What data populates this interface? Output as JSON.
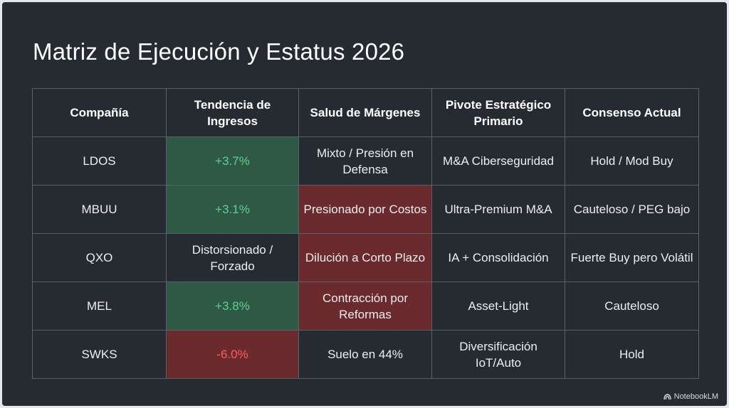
{
  "title": "Matriz de Ejecución y Estatus 2026",
  "table": {
    "headers": [
      "Compañía",
      "Tendencia de Ingresos",
      "Salud de Márgenes",
      "Pivote Estratégico Primario",
      "Consenso Actual"
    ],
    "rows": [
      [
        "LDOS",
        "+3.7%",
        "Mixto / Presión en Defensa",
        "M&A Ciberseguridad",
        "Hold / Mod Buy"
      ],
      [
        "MBUU",
        "+3.1%",
        "Presionado por Costos",
        "Ultra-Premium M&A",
        "Cauteloso / PEG bajo"
      ],
      [
        "QXO",
        "Distorsionado / Forzado",
        "Dilución a Corto Plazo",
        "IA + Consolidación",
        "Fuerte Buy pero Volátil"
      ],
      [
        "MEL",
        "+3.8%",
        "Contracción por Reformas",
        "Asset-Light",
        "Cauteloso"
      ],
      [
        "SWKS",
        "-6.0%",
        "Suelo en 44%",
        "Diversificación IoT/Auto",
        "Hold"
      ]
    ],
    "cell_status": [
      [
        "none",
        "positive",
        "none",
        "none",
        "none"
      ],
      [
        "none",
        "positive",
        "negative",
        "none",
        "none"
      ],
      [
        "none",
        "none",
        "negative",
        "none",
        "none"
      ],
      [
        "none",
        "positive",
        "negative",
        "none",
        "none"
      ],
      [
        "none",
        "negative",
        "none",
        "none",
        "none"
      ]
    ]
  },
  "colors": {
    "background": "#262b31",
    "positive_fill": "#2e5a45",
    "positive_text": "#5fd08f",
    "negative_fill": "#6b2a2e",
    "negative_text": "#ff5c5c"
  },
  "watermark": {
    "icon": "notebooklm-logo-icon",
    "text": "NotebookLM"
  }
}
